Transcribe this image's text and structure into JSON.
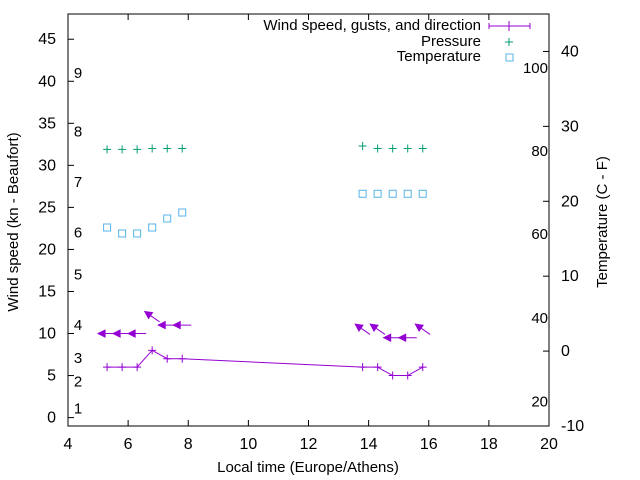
{
  "chart_data": {
    "type": "line",
    "xlabel": "Local time (Europe/Athens)",
    "ylabel": "Wind speed (kn - Beaufort)",
    "y2label": "Temperature (C - F)",
    "xlim": [
      4,
      20
    ],
    "ylim": [
      -1,
      48
    ],
    "y2lim": [
      -10,
      45
    ],
    "grid": false,
    "legend_position": "top-right",
    "x_ticks": [
      "4",
      "6",
      "8",
      "10",
      "12",
      "14",
      "16",
      "18",
      "20"
    ],
    "y_ticks": [
      "0",
      "5",
      "10",
      "15",
      "20",
      "25",
      "30",
      "35",
      "40",
      "45"
    ],
    "y2_ticks": [
      "-10",
      "0",
      "10",
      "20",
      "30",
      "40"
    ],
    "beaufort_labels": [
      {
        "text": "1",
        "y": 1.1
      },
      {
        "text": "2",
        "y": 4.3
      },
      {
        "text": "3",
        "y": 7.1
      },
      {
        "text": "4",
        "y": 11.0
      },
      {
        "text": "5",
        "y": 17.0
      },
      {
        "text": "6",
        "y": 22.0
      },
      {
        "text": "7",
        "y": 28.0
      },
      {
        "text": "8",
        "y": 34.0
      },
      {
        "text": "9",
        "y": 41.0
      }
    ],
    "fahrenheit_labels": [
      {
        "text": "20",
        "y2": -6.7
      },
      {
        "text": "40",
        "y2": 4.4
      },
      {
        "text": "60",
        "y2": 15.6
      },
      {
        "text": "80",
        "y2": 26.7
      },
      {
        "text": "100",
        "y2": 37.8
      }
    ],
    "series": [
      {
        "name": "Wind speed, gusts, and direction",
        "color": "#9400d3",
        "x": [
          5.3,
          5.8,
          6.3,
          6.8,
          7.3,
          7.8,
          13.8,
          14.3,
          14.8,
          15.3,
          15.8
        ],
        "y": [
          6,
          6,
          6,
          8,
          7,
          7,
          6,
          6,
          5,
          5,
          6
        ],
        "gusts": [
          10,
          10,
          10,
          12,
          11,
          11,
          10.5,
          10.5,
          9.5,
          9.5,
          10.5
        ],
        "arrow_dir": [
          "e",
          "e",
          "e",
          "se",
          "e",
          "e",
          "se",
          "se",
          "e",
          "e",
          "se"
        ]
      },
      {
        "name": "Pressure",
        "color": "#009e73",
        "x": [
          5.3,
          5.8,
          6.3,
          6.8,
          7.3,
          7.8,
          13.8,
          14.3,
          14.8,
          15.3,
          15.8
        ],
        "y": [
          31.9,
          31.9,
          31.9,
          32.0,
          32.0,
          32.0,
          32.3,
          32.0,
          32.0,
          32.0,
          32.0
        ]
      },
      {
        "name": "Temperature",
        "color": "#56b4e9",
        "x": [
          5.3,
          5.8,
          6.3,
          6.8,
          7.3,
          7.8,
          13.8,
          14.3,
          14.8,
          15.3,
          15.8
        ],
        "y2": [
          16.5,
          15.7,
          15.7,
          16.5,
          17.7,
          18.5,
          21,
          21,
          21,
          21,
          21
        ]
      }
    ]
  }
}
